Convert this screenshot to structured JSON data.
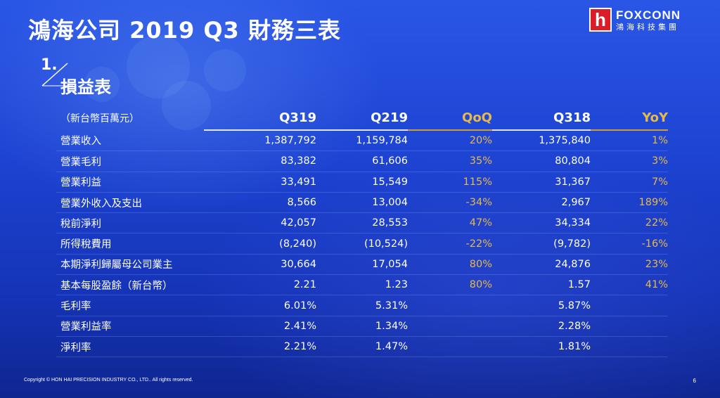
{
  "slide": {
    "title": "鴻海公司 2019 Q3 財務三表",
    "section_number": "1.",
    "section_title": "損益表",
    "copyright": "Copyright © HON HAI PRECISION INDUSTRY CO., LTD.. All rights reserved.",
    "page_number": "6"
  },
  "logo": {
    "mark": "h",
    "name_en": "FOXCONN",
    "name_zh": "鴻海科技集團"
  },
  "table": {
    "unit": "（新台幣百萬元）",
    "columns": [
      "Q319",
      "Q219",
      "QoQ",
      "Q318",
      "YoY"
    ],
    "rows": [
      {
        "label": "營業收入",
        "q319": "1,387,792",
        "q219": "1,159,784",
        "qoq": "20%",
        "q318": "1,375,840",
        "yoy": "1%"
      },
      {
        "label": "營業毛利",
        "q319": "83,382",
        "q219": "61,606",
        "qoq": "35%",
        "q318": "80,804",
        "yoy": "3%"
      },
      {
        "label": "營業利益",
        "q319": "33,491",
        "q219": "15,549",
        "qoq": "115%",
        "q318": "31,367",
        "yoy": "7%"
      },
      {
        "label": "營業外收入及支出",
        "q319": "8,566",
        "q219": "13,004",
        "qoq": "-34%",
        "q318": "2,967",
        "yoy": "189%"
      },
      {
        "label": "稅前淨利",
        "q319": "42,057",
        "q219": "28,553",
        "qoq": "47%",
        "q318": "34,334",
        "yoy": "22%"
      },
      {
        "label": "所得稅費用",
        "q319": "(8,240)",
        "q219": "(10,524)",
        "qoq": "-22%",
        "q318": "(9,782)",
        "yoy": "-16%"
      },
      {
        "label": "本期淨利歸屬母公司業主",
        "q319": "30,664",
        "q219": "17,054",
        "qoq": "80%",
        "q318": "24,876",
        "yoy": "23%"
      },
      {
        "label": "基本每股盈餘（新台幣）",
        "q319": "2.21",
        "q219": "1.23",
        "qoq": "80%",
        "q318": "1.57",
        "yoy": "41%"
      },
      {
        "label": "毛利率",
        "q319": "6.01%",
        "q219": "5.31%",
        "qoq": "",
        "q318": "5.87%",
        "yoy": ""
      },
      {
        "label": "營業利益率",
        "q319": "2.41%",
        "q219": "1.34%",
        "qoq": "",
        "q318": "2.28%",
        "yoy": ""
      },
      {
        "label": "淨利率",
        "q319": "2.21%",
        "q219": "1.47%",
        "qoq": "",
        "q318": "1.81%",
        "yoy": ""
      }
    ]
  },
  "colors": {
    "accent_gold": "#e5b94a",
    "logo_red": "#d91e2a",
    "background": "#1d43d2"
  }
}
